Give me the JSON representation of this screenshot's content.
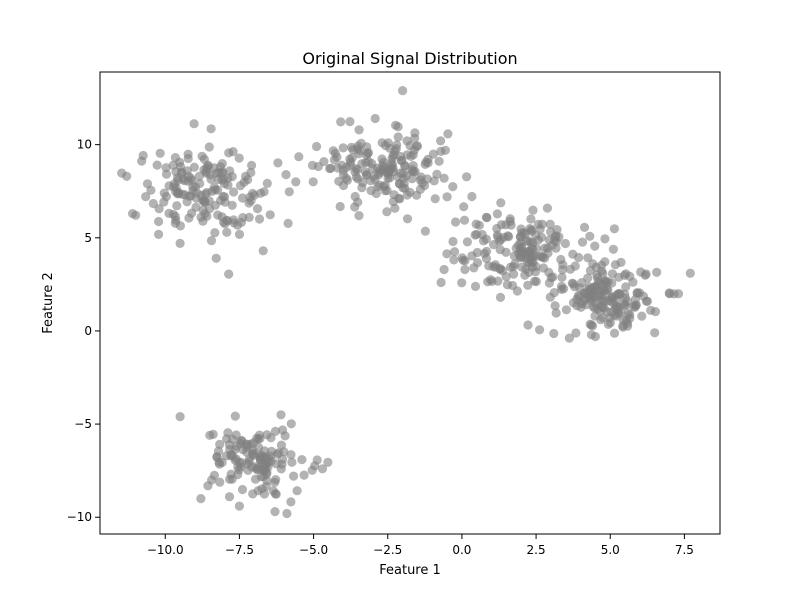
{
  "chart_data": {
    "type": "scatter",
    "title": "Original Signal Distribution",
    "xlabel": "Feature 1",
    "ylabel": "Feature 2",
    "xlim": [
      -12.2,
      8.7
    ],
    "ylim": [
      -10.9,
      13.9
    ],
    "xticks": [
      {
        "value": -10.0,
        "label": "−10.0"
      },
      {
        "value": -7.5,
        "label": "−7.5"
      },
      {
        "value": -5.0,
        "label": "−5.0"
      },
      {
        "value": -2.5,
        "label": "−2.5"
      },
      {
        "value": 0.0,
        "label": "0.0"
      },
      {
        "value": 2.5,
        "label": "2.5"
      },
      {
        "value": 5.0,
        "label": "5.0"
      },
      {
        "value": 7.5,
        "label": "7.5"
      }
    ],
    "yticks": [
      {
        "value": -10,
        "label": "−10"
      },
      {
        "value": -5,
        "label": "−5"
      },
      {
        "value": 0,
        "label": "0"
      },
      {
        "value": 5,
        "label": "5"
      },
      {
        "value": 10,
        "label": "10"
      }
    ],
    "grid": false,
    "legend": "none",
    "marker_color": "#808080",
    "marker_alpha": 0.6,
    "clusters": [
      {
        "center": [
          -8.8,
          7.4
        ],
        "spread": [
          1.0,
          1.2
        ],
        "count": 160
      },
      {
        "center": [
          -2.6,
          8.8
        ],
        "spread": [
          1.1,
          0.95
        ],
        "count": 170
      },
      {
        "center": [
          2.1,
          4.2
        ],
        "spread": [
          1.1,
          0.95
        ],
        "count": 165
      },
      {
        "center": [
          4.8,
          1.8
        ],
        "spread": [
          0.95,
          0.95
        ],
        "count": 165
      },
      {
        "center": [
          -6.8,
          -6.8
        ],
        "spread": [
          0.9,
          0.95
        ],
        "count": 130
      }
    ],
    "outliers": [
      [
        -11.3,
        8.3
      ],
      [
        -11.1,
        6.3
      ],
      [
        -10.6,
        7.9
      ],
      [
        -9.5,
        4.7
      ],
      [
        -6.7,
        4.3
      ],
      [
        -5.6,
        8.0
      ],
      [
        -4.9,
        9.9
      ],
      [
        -1.4,
        7.6
      ],
      [
        -0.9,
        7.1
      ],
      [
        -0.6,
        8.2
      ],
      [
        -0.5,
        7.2
      ],
      [
        -2.0,
        12.9
      ],
      [
        -0.3,
        4.8
      ],
      [
        -0.6,
        3.3
      ],
      [
        -0.7,
        2.6
      ],
      [
        0.1,
        3.3
      ],
      [
        1.3,
        1.8
      ],
      [
        7.0,
        2.0
      ],
      [
        7.3,
        2.0
      ],
      [
        7.7,
        3.1
      ],
      [
        -9.5,
        -4.6
      ],
      [
        -6.1,
        -4.5
      ],
      [
        -5.9,
        -9.8
      ],
      [
        -6.3,
        -9.7
      ],
      [
        -8.8,
        -9.0
      ],
      [
        -4.7,
        -7.4
      ],
      [
        -8.5,
        -5.6
      ],
      [
        -7.5,
        -9.4
      ],
      [
        6.5,
        -0.1
      ],
      [
        4.5,
        -0.3
      ]
    ]
  }
}
